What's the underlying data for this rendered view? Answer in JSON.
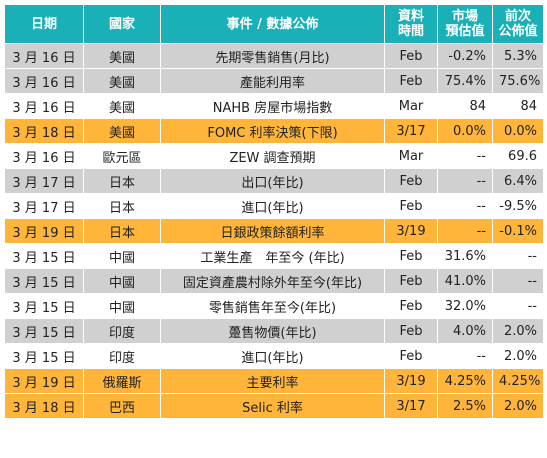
{
  "headers": {
    "date": "日期",
    "country": "國家",
    "event": "事件 / 數據公佈",
    "period_l1": "資料",
    "period_l2": "時間",
    "forecast_l1": "市場",
    "forecast_l2": "預估值",
    "previous_l1": "前次",
    "previous_l2": "公佈值"
  },
  "colors": {
    "header": "#1ab0b8",
    "gray_row": "#d0d0d0",
    "highlight_row": "#ffb53a",
    "white_row": "#ffffff"
  },
  "rows": [
    {
      "date": "3 月 16 日",
      "country": "美國",
      "event": "先期零售銷售(月比)",
      "period": "Feb",
      "forecast": "-0.2%",
      "previous": "5.3%",
      "style": "gray"
    },
    {
      "date": "3 月 16 日",
      "country": "美國",
      "event": "產能利用率",
      "period": "Feb",
      "forecast": "75.4%",
      "previous": "75.6%",
      "style": "gray"
    },
    {
      "date": "3 月 16 日",
      "country": "美國",
      "event": "NAHB 房屋市場指數",
      "period": "Mar",
      "forecast": "84",
      "previous": "84",
      "style": "white"
    },
    {
      "date": "3 月 18 日",
      "country": "美國",
      "event": "FOMC 利率決策(下限)",
      "period": "3/17",
      "forecast": "0.0%",
      "previous": "0.0%",
      "style": "orange"
    },
    {
      "date": "3 月 16 日",
      "country": "歐元區",
      "event": "ZEW 調查預期",
      "period": "Mar",
      "forecast": "--",
      "previous": "69.6",
      "style": "white"
    },
    {
      "date": "3 月 17 日",
      "country": "日本",
      "event": "出口(年比)",
      "period": "Feb",
      "forecast": "--",
      "previous": "6.4%",
      "style": "gray"
    },
    {
      "date": "3 月 17 日",
      "country": "日本",
      "event": "進口(年比)",
      "period": "Feb",
      "forecast": "--",
      "previous": "-9.5%",
      "style": "white"
    },
    {
      "date": "3 月 19 日",
      "country": "日本",
      "event": "日銀政策餘額利率",
      "period": "3/19",
      "forecast": "--",
      "previous": "-0.1%",
      "style": "orange"
    },
    {
      "date": "3 月 15 日",
      "country": "中國",
      "event": "工業生產　年至今 (年比)",
      "period": "Feb",
      "forecast": "31.6%",
      "previous": "--",
      "style": "white"
    },
    {
      "date": "3 月 15 日",
      "country": "中國",
      "event": "固定資產農村除外年至今(年比)",
      "period": "Feb",
      "forecast": "41.0%",
      "previous": "--",
      "style": "gray"
    },
    {
      "date": "3 月 15 日",
      "country": "中國",
      "event": "零售銷售年至今(年比)",
      "period": "Feb",
      "forecast": "32.0%",
      "previous": "--",
      "style": "white"
    },
    {
      "date": "3 月 15 日",
      "country": "印度",
      "event": "躉售物價(年比)",
      "period": "Feb",
      "forecast": "4.0%",
      "previous": "2.0%",
      "style": "gray"
    },
    {
      "date": "3 月 15 日",
      "country": "印度",
      "event": "進口(年比)",
      "period": "Feb",
      "forecast": "--",
      "previous": "2.0%",
      "style": "white"
    },
    {
      "date": "3 月 19 日",
      "country": "俄羅斯",
      "event": "主要利率",
      "period": "3/19",
      "forecast": "4.25%",
      "previous": "4.25%",
      "style": "orange"
    },
    {
      "date": "3 月 18 日",
      "country": "巴西",
      "event": "Selic 利率",
      "period": "3/17",
      "forecast": "2.5%",
      "previous": "2.0%",
      "style": "orange"
    }
  ]
}
